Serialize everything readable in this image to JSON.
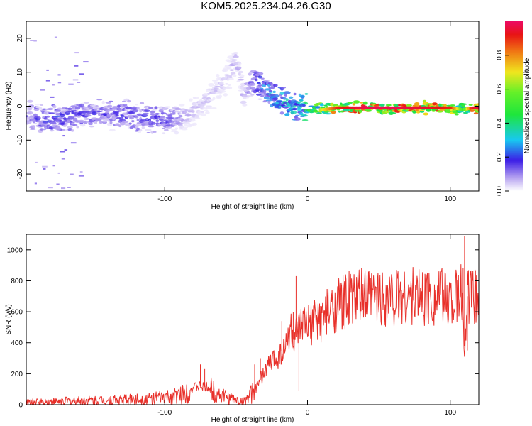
{
  "title": "KOM5.2025.234.04.26.G30",
  "chart_data": [
    {
      "type": "heatmap",
      "xlabel": "Height of straight line (km)",
      "ylabel": "Frequency (Hz)",
      "xlim": [
        -197,
        120
      ],
      "ylim": [
        -25,
        25
      ],
      "xticks": [
        -100,
        0,
        100
      ],
      "yticks": [
        -20,
        -10,
        0,
        10,
        20
      ],
      "ridge": {
        "x": [
          -197,
          -180,
          -160,
          -140,
          -120,
          -100,
          -85,
          -75,
          -65,
          -55,
          -50,
          -45,
          -40,
          -35,
          -30,
          -25,
          -20,
          -15,
          -10,
          -5,
          0,
          10,
          20,
          40,
          60,
          80,
          100,
          108,
          115,
          120
        ],
        "y": [
          -3,
          -4,
          -3,
          -2,
          -3,
          -4,
          -3,
          0,
          4,
          9,
          14,
          3,
          6,
          7,
          5,
          3,
          1,
          1,
          0,
          0,
          -1,
          -1,
          -0.5,
          -0.5,
          -0.5,
          -0.5,
          -0.5,
          -1,
          -0.5,
          -0.5
        ],
        "amplitude": [
          0.15,
          0.25,
          0.2,
          0.2,
          0.2,
          0.2,
          0.1,
          0.08,
          0.08,
          0.08,
          0.1,
          0.1,
          0.15,
          0.25,
          0.3,
          0.35,
          0.35,
          0.4,
          0.4,
          0.45,
          0.5,
          0.7,
          0.9,
          0.98,
          0.98,
          0.95,
          0.9,
          0.5,
          0.95,
          0.95
        ]
      },
      "colorbar": {
        "label": "Normalized spectral amplitude",
        "range": [
          0,
          1
        ],
        "ticks": [
          0.0,
          0.2,
          0.4,
          0.6,
          0.8
        ],
        "tick_labels": [
          "0.0",
          "0.2",
          "0.4",
          "0.6",
          "0.8"
        ]
      }
    },
    {
      "type": "line",
      "xlabel": "Height of straight line (km)",
      "ylabel": "SNR (v/v)",
      "xlim": [
        -197,
        120
      ],
      "ylim": [
        0,
        1100
      ],
      "xticks": [
        -100,
        0,
        100
      ],
      "yticks": [
        0,
        200,
        400,
        600,
        800,
        1000
      ],
      "series": [
        {
          "name": "SNR",
          "color": "#e8302a",
          "x": [
            -197,
            -180,
            -160,
            -140,
            -120,
            -100,
            -90,
            -85,
            -80,
            -75,
            -70,
            -60,
            -50,
            -45,
            -40,
            -35,
            -30,
            -25,
            -20,
            -15,
            -12,
            -10,
            -7,
            -5,
            -2,
            0,
            5,
            10,
            15,
            20,
            25,
            30,
            35,
            40,
            60,
            80,
            100,
            105,
            108,
            110,
            112,
            115,
            120
          ],
          "values": [
            15,
            20,
            25,
            30,
            35,
            45,
            60,
            80,
            110,
            120,
            110,
            60,
            30,
            20,
            60,
            120,
            220,
            280,
            320,
            380,
            500,
            420,
            450,
            480,
            520,
            500,
            540,
            560,
            600,
            640,
            660,
            680,
            690,
            695,
            700,
            700,
            690,
            680,
            720,
            380,
            700,
            690,
            690
          ]
        }
      ],
      "spikes": {
        "x": [
          -75,
          -72,
          -37,
          -33,
          -18,
          -10,
          -8,
          -6,
          18,
          105,
          109,
          110,
          112
        ],
        "values": [
          260,
          230,
          260,
          300,
          540,
          600,
          830,
          90,
          500,
          760,
          880,
          1090,
          350
        ]
      }
    }
  ]
}
